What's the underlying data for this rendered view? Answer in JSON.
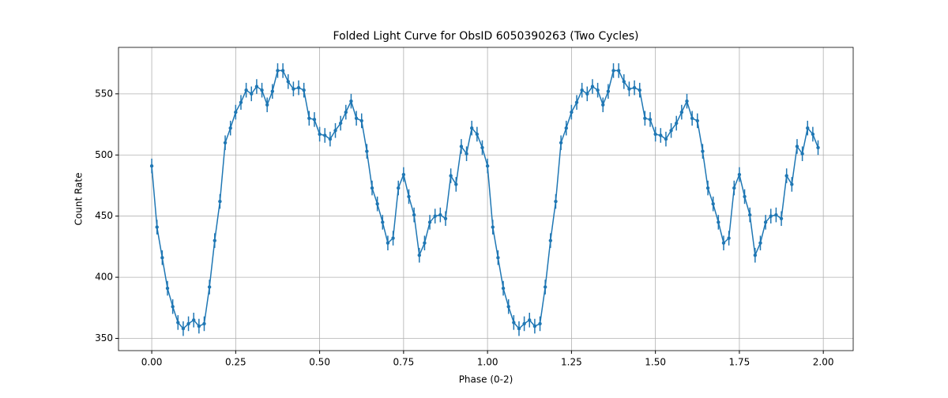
{
  "chart_data": {
    "type": "errorbar-line",
    "title": "Folded Light Curve for ObsID 6050390263 (Two Cycles)",
    "x_label": "Phase (0-2)",
    "y_label": "Count Rate",
    "color": "#1f77b4",
    "grid": true,
    "xlim": [
      -0.099,
      2.089
    ],
    "ylim": [
      340,
      588
    ],
    "xticks": [
      {
        "value": 0,
        "label": "0.00"
      },
      {
        "value": 0.25,
        "label": "0.25"
      },
      {
        "value": 0.5,
        "label": "0.50"
      },
      {
        "value": 0.75,
        "label": "0.75"
      },
      {
        "value": 1,
        "label": "1.00"
      },
      {
        "value": 1.25,
        "label": "1.25"
      },
      {
        "value": 1.5,
        "label": "1.50"
      },
      {
        "value": 1.75,
        "label": "1.75"
      },
      {
        "value": 2,
        "label": "2.00"
      }
    ],
    "yticks": [
      350,
      400,
      450,
      500,
      550
    ],
    "x": [
      0,
      0.015625,
      0.03125,
      0.046875,
      0.0625,
      0.078125,
      0.09375,
      0.109375,
      0.125,
      0.140625,
      0.15625,
      0.171875,
      0.1875,
      0.203125,
      0.21875,
      0.234375,
      0.25,
      0.265625,
      0.28125,
      0.296875,
      0.3125,
      0.328125,
      0.34375,
      0.359375,
      0.375,
      0.390625,
      0.40625,
      0.421875,
      0.4375,
      0.453125,
      0.46875,
      0.484375,
      0.5,
      0.515625,
      0.53125,
      0.546875,
      0.5625,
      0.578125,
      0.59375,
      0.609375,
      0.625,
      0.640625,
      0.65625,
      0.671875,
      0.6875,
      0.703125,
      0.71875,
      0.734375,
      0.75,
      0.765625,
      0.78125,
      0.796875,
      0.8125,
      0.828125,
      0.84375,
      0.859375,
      0.875,
      0.890625,
      0.90625,
      0.921875,
      0.9375,
      0.953125,
      0.96875,
      0.984375,
      1,
      1.015625,
      1.03125,
      1.046875,
      1.0625,
      1.078125,
      1.09375,
      1.109375,
      1.125,
      1.140625,
      1.15625,
      1.171875,
      1.1875,
      1.203125,
      1.21875,
      1.234375,
      1.25,
      1.265625,
      1.28125,
      1.296875,
      1.3125,
      1.328125,
      1.34375,
      1.359375,
      1.375,
      1.390625,
      1.40625,
      1.421875,
      1.4375,
      1.453125,
      1.46875,
      1.484375,
      1.5,
      1.515625,
      1.53125,
      1.546875,
      1.5625,
      1.578125,
      1.59375,
      1.609375,
      1.625,
      1.640625,
      1.65625,
      1.671875,
      1.6875,
      1.703125,
      1.71875,
      1.734375,
      1.75,
      1.765625,
      1.78125,
      1.796875,
      1.8125,
      1.828125,
      1.84375,
      1.859375,
      1.875,
      1.890625,
      1.90625,
      1.921875,
      1.9375,
      1.953125,
      1.96875,
      1.984375
    ],
    "values": [
      491,
      441,
      416,
      391,
      376,
      363,
      358,
      362,
      365,
      360,
      362,
      392,
      430,
      462,
      510,
      522,
      535,
      543,
      553,
      550,
      556,
      553,
      541,
      552,
      569,
      569,
      560,
      554,
      555,
      553,
      530,
      529,
      517,
      516,
      513,
      520,
      526,
      535,
      544,
      530,
      528,
      503,
      473,
      460,
      445,
      428,
      432,
      473,
      484,
      466,
      451,
      418,
      428,
      445,
      450,
      451,
      448,
      483,
      476,
      507,
      501,
      522,
      517,
      506,
      491,
      441,
      416,
      391,
      376,
      363,
      358,
      362,
      365,
      360,
      362,
      392,
      430,
      462,
      510,
      522,
      535,
      543,
      553,
      550,
      556,
      553,
      541,
      552,
      569,
      569,
      560,
      554,
      555,
      553,
      530,
      529,
      517,
      516,
      513,
      520,
      526,
      535,
      544,
      530,
      528,
      503,
      473,
      460,
      445,
      428,
      432,
      473,
      484,
      466,
      451,
      418,
      428,
      445,
      450,
      451,
      448,
      483,
      476,
      507,
      501,
      522,
      517,
      506
    ],
    "errors": [
      6,
      6,
      6,
      6,
      6,
      6,
      6,
      6,
      6,
      6,
      6,
      6,
      6,
      6,
      6,
      6,
      6,
      6,
      6,
      6,
      6,
      6,
      6,
      6,
      6,
      6,
      6,
      6,
      6,
      6,
      6,
      6,
      6,
      6,
      6,
      6,
      6,
      6,
      6,
      6,
      6,
      6,
      6,
      6,
      6,
      6,
      6,
      6,
      6,
      6,
      6,
      6,
      6,
      6,
      6,
      6,
      6,
      6,
      6,
      6,
      6,
      6,
      6,
      6,
      6,
      6,
      6,
      6,
      6,
      6,
      6,
      6,
      6,
      6,
      6,
      6,
      6,
      6,
      6,
      6,
      6,
      6,
      6,
      6,
      6,
      6,
      6,
      6,
      6,
      6,
      6,
      6,
      6,
      6,
      6,
      6,
      6,
      6,
      6,
      6,
      6,
      6,
      6,
      6,
      6,
      6,
      6,
      6,
      6,
      6,
      6,
      6,
      6,
      6,
      6,
      6,
      6,
      6,
      6,
      6,
      6,
      6,
      6,
      6,
      6,
      6,
      6,
      6
    ]
  }
}
